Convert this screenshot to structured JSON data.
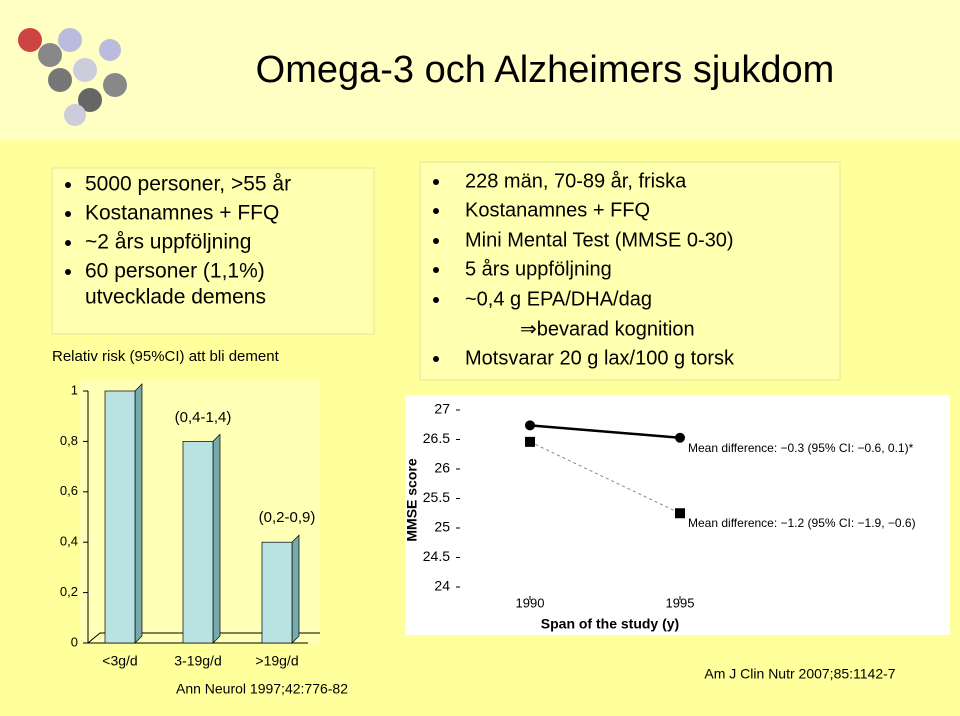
{
  "title": "Omega-3 och Alzheimers sjukdom",
  "left_box": {
    "bullets": [
      "5000 personer, >55 år",
      "Kostanamnes + FFQ",
      "~2 års uppföljning",
      "60 personer (1,1%)",
      "utvecklade demens"
    ]
  },
  "right_box": {
    "bullets": [
      "228 män, 70-89 år, friska",
      "Kostanamnes + FFQ",
      "Mini Mental Test (MMSE 0-30)",
      "5 års uppföljning",
      "~0,4 g EPA/DHA/dag",
      "⇒bevarad kognition",
      "Motsvarar 20 g lax/100 g torsk"
    ]
  },
  "chart_data": [
    {
      "type": "bar",
      "title": "Relativ risk (95%CI) att bli dement",
      "categories": [
        "<3g/d",
        "3-19g/d",
        ">19g/d"
      ],
      "values": [
        1,
        0.8,
        0.4
      ],
      "color": "#b9e3e3",
      "annotations": [
        "(0,4-1,4)",
        "(0,2-0,9)"
      ],
      "ylim": [
        0,
        1
      ],
      "yticks": [
        0,
        {
          "value": 0.2,
          "label": "0,2"
        },
        {
          "value": 0.4,
          "label": "0,4"
        },
        {
          "value": 0.6,
          "label": "0,6"
        },
        {
          "value": 0.8,
          "label": "0,8"
        },
        1
      ],
      "source": "Ann Neurol 1997;42:776-82"
    },
    {
      "type": "line",
      "y_label": "MMSE score",
      "x_label": "Span of the study (y)",
      "x": [
        1990,
        1995
      ],
      "xlim": [
        1987,
        1998
      ],
      "xticks": [
        1990,
        1995
      ],
      "series": [
        {
          "color": "#000000",
          "values": [
            26.74,
            26.53
          ]
        },
        {
          "color": "#000000",
          "values": [
            26.46,
            25.25
          ]
        }
      ],
      "annotations": [
        "Mean difference: −0.3 (95% CI: −0.6, 0.1)*",
        "Mean difference: −1.2 (95% CI: −1.9, −0.6)"
      ],
      "ylim": [
        24,
        27
      ],
      "yticks": [
        24,
        24.5,
        25,
        25.5,
        26,
        26.5,
        27
      ],
      "source": "Am J Clin Nutr 2007;85:1142-7"
    }
  ]
}
